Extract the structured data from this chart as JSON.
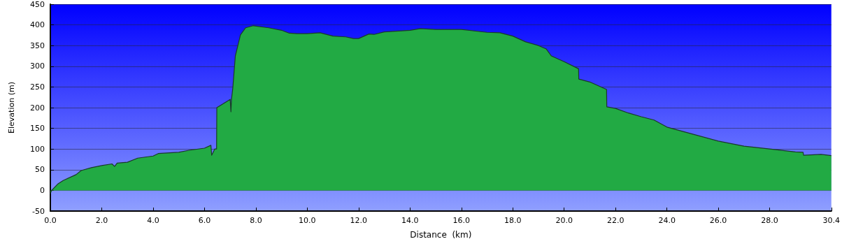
{
  "chart_data": {
    "type": "area",
    "xlabel": "Distance  (km)",
    "ylabel": "Elevation (m)",
    "xlim": [
      0,
      30.4
    ],
    "xticks": [
      {
        "value": 0,
        "label": "0.0"
      },
      {
        "value": 2,
        "label": "2.0"
      },
      {
        "value": 4,
        "label": "4.0"
      },
      {
        "value": 6,
        "label": "6.0"
      },
      {
        "value": 8,
        "label": "8.0"
      },
      {
        "value": 10,
        "label": "10.0"
      },
      {
        "value": 12,
        "label": "12.0"
      },
      {
        "value": 14,
        "label": "14.0"
      },
      {
        "value": 16,
        "label": "16.0"
      },
      {
        "value": 18,
        "label": "18.0"
      },
      {
        "value": 20,
        "label": "20.0"
      },
      {
        "value": 22,
        "label": "22.0"
      },
      {
        "value": 24,
        "label": "24.0"
      },
      {
        "value": 26,
        "label": "26.0"
      },
      {
        "value": 28,
        "label": "28.0"
      },
      30.4
    ],
    "ylim": [
      -50,
      450
    ],
    "yticks": [
      -50,
      0,
      50,
      100,
      150,
      200,
      250,
      300,
      350,
      400,
      450
    ],
    "grid": "y",
    "marker": "none",
    "series": [
      {
        "color": "#22aa44",
        "x": [
          0,
          0.05,
          0.3,
          0.5,
          1.0,
          1.2,
          1.6,
          2.0,
          2.4,
          2.5,
          2.6,
          3.0,
          3.4,
          4.0,
          4.2,
          5.0,
          5.4,
          6.0,
          6.25,
          6.28,
          6.4,
          6.47,
          6.48,
          7.0,
          7.03,
          7.05,
          7.1,
          7.2,
          7.4,
          7.6,
          7.9,
          8.5,
          9.0,
          9.3,
          9.6,
          10.0,
          10.5,
          11.0,
          11.5,
          11.8,
          12.0,
          12.4,
          12.6,
          13.0,
          14.0,
          14.4,
          15.0,
          16.0,
          17.0,
          17.5,
          18.0,
          18.5,
          19.0,
          19.3,
          19.5,
          20.0,
          20.56,
          20.57,
          21.0,
          21.65,
          21.66,
          22.0,
          22.5,
          23.0,
          23.5,
          24.0,
          25.0,
          26.0,
          27.0,
          28.0,
          29.0,
          29.3,
          29.32,
          30.0,
          30.4
        ],
        "values": [
          -8,
          0,
          16,
          24,
          38,
          48,
          55,
          60,
          64,
          58,
          66,
          68,
          78,
          83,
          89,
          92,
          97,
          102,
          109,
          85,
          100,
          100,
          200,
          220,
          190,
          220,
          246,
          325,
          376,
          393,
          398,
          393,
          387,
          380,
          379,
          379,
          381,
          373,
          371,
          367,
          367,
          378,
          377,
          383,
          387,
          391,
          389,
          389,
          382,
          381,
          373,
          359,
          350,
          342,
          325,
          311,
          294,
          269,
          262,
          244,
          202,
          198,
          187,
          178,
          170,
          153,
          136,
          119,
          107,
          100,
          93,
          92,
          85,
          87,
          84
        ]
      }
    ]
  }
}
